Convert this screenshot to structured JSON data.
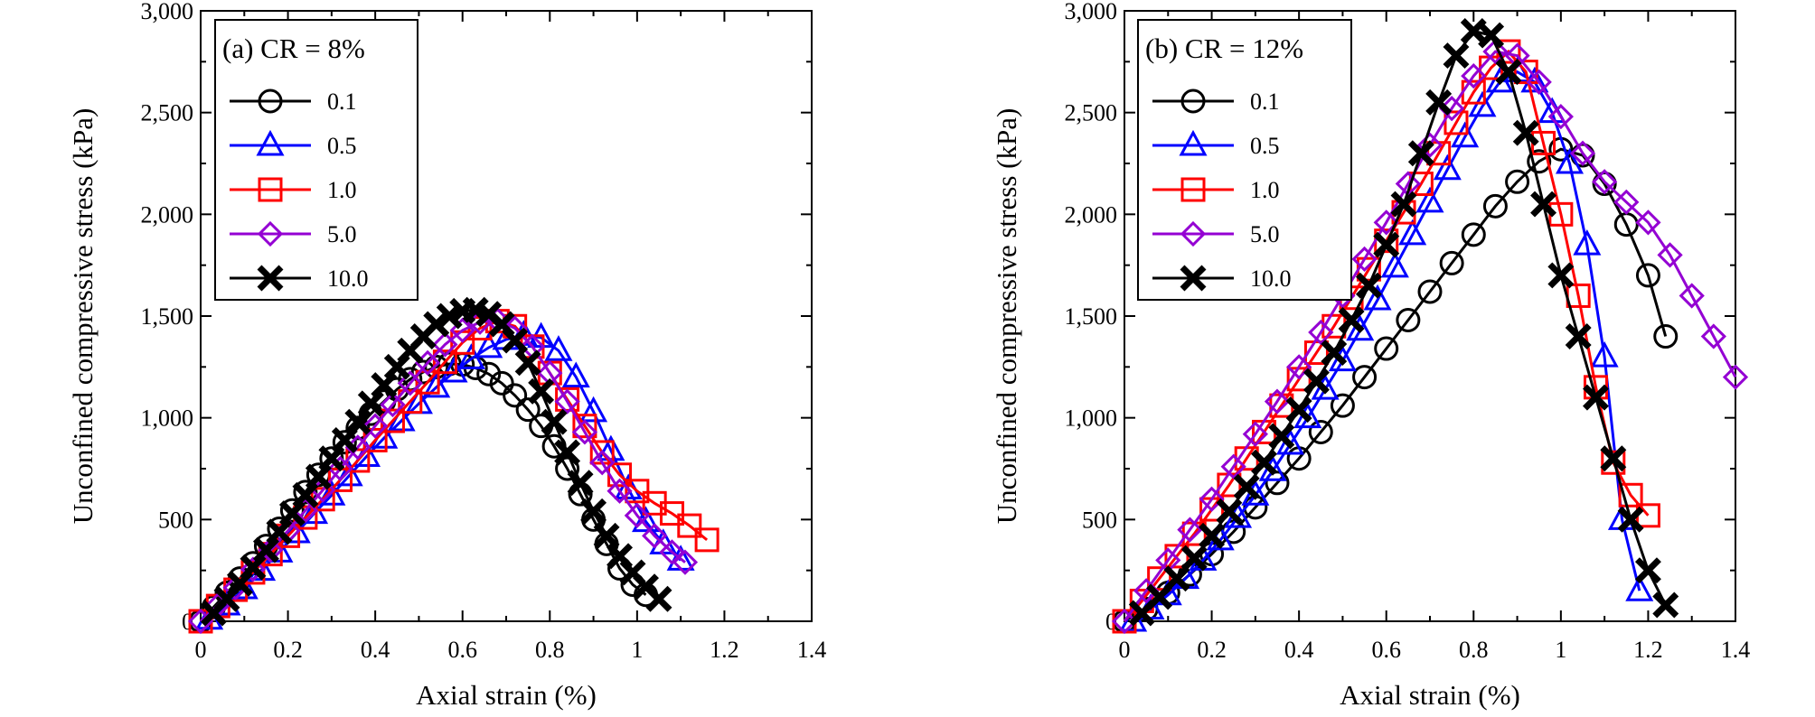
{
  "chart_data": [
    {
      "type": "line",
      "title": "(a) CR = 8%",
      "xlabel": "Axial strain (%)",
      "ylabel": "Unconfined compressive stress (kPa)",
      "xlim": [
        0,
        1.4
      ],
      "ylim": [
        0,
        3000
      ],
      "x_ticks": [
        0,
        0.2,
        0.4,
        0.6,
        0.8,
        1,
        1.2,
        1.4
      ],
      "x_tick_labels": [
        "0",
        "0.2",
        "0.4",
        "0.6",
        "0.8",
        "1",
        "1.2",
        "1.4"
      ],
      "y_ticks": [
        0,
        500,
        1000,
        1500,
        2000,
        2500,
        3000
      ],
      "y_tick_labels": [
        "0",
        "500",
        "1,000",
        "1,500",
        "2,000",
        "2,500",
        "3,000"
      ],
      "legend_position": "top-left",
      "grid": false,
      "series": [
        {
          "name": "0.1",
          "color": "#000000",
          "marker": "circle",
          "x": [
            0.0,
            0.03,
            0.06,
            0.09,
            0.12,
            0.15,
            0.18,
            0.21,
            0.24,
            0.27,
            0.3,
            0.33,
            0.36,
            0.39,
            0.42,
            0.45,
            0.48,
            0.51,
            0.54,
            0.57,
            0.6,
            0.63,
            0.66,
            0.69,
            0.72,
            0.75,
            0.78,
            0.81,
            0.84,
            0.87,
            0.9,
            0.93,
            0.96,
            0.99,
            1.02
          ],
          "y": [
            0,
            70,
            140,
            210,
            285,
            370,
            455,
            545,
            635,
            720,
            800,
            880,
            950,
            1020,
            1080,
            1140,
            1190,
            1225,
            1250,
            1265,
            1262,
            1245,
            1215,
            1170,
            1110,
            1040,
            960,
            860,
            750,
            625,
            500,
            380,
            260,
            180,
            130
          ]
        },
        {
          "name": "0.5",
          "color": "#0000ff",
          "marker": "triangle",
          "x": [
            0.02,
            0.06,
            0.1,
            0.14,
            0.18,
            0.22,
            0.26,
            0.3,
            0.34,
            0.38,
            0.42,
            0.46,
            0.5,
            0.54,
            0.58,
            0.62,
            0.66,
            0.7,
            0.74,
            0.78,
            0.82,
            0.86,
            0.9,
            0.94,
            0.98,
            1.02,
            1.06,
            1.1
          ],
          "y": [
            10,
            80,
            160,
            250,
            340,
            435,
            530,
            620,
            715,
            810,
            900,
            985,
            1070,
            1150,
            1225,
            1290,
            1345,
            1385,
            1405,
            1395,
            1330,
            1200,
            1030,
            840,
            650,
            490,
            380,
            300
          ]
        },
        {
          "name": "1.0",
          "color": "#ff0000",
          "marker": "square",
          "x": [
            0.0,
            0.04,
            0.08,
            0.12,
            0.16,
            0.2,
            0.24,
            0.28,
            0.32,
            0.36,
            0.4,
            0.44,
            0.48,
            0.52,
            0.56,
            0.6,
            0.64,
            0.68,
            0.72,
            0.76,
            0.8,
            0.84,
            0.88,
            0.92,
            0.96,
            1.0,
            1.04,
            1.08,
            1.12,
            1.16
          ],
          "y": [
            0,
            75,
            155,
            240,
            330,
            420,
            510,
            600,
            695,
            790,
            890,
            985,
            1080,
            1175,
            1275,
            1370,
            1440,
            1475,
            1450,
            1350,
            1220,
            1090,
            960,
            830,
            720,
            640,
            580,
            530,
            470,
            400
          ]
        },
        {
          "name": "5.0",
          "color": "#9400d3",
          "marker": "diamond",
          "x": [
            0.0,
            0.04,
            0.08,
            0.12,
            0.16,
            0.2,
            0.24,
            0.28,
            0.32,
            0.36,
            0.4,
            0.44,
            0.48,
            0.52,
            0.56,
            0.6,
            0.64,
            0.68,
            0.72,
            0.76,
            0.8,
            0.84,
            0.88,
            0.92,
            0.96,
            1.0,
            1.04,
            1.08,
            1.11
          ],
          "y": [
            0,
            80,
            165,
            255,
            350,
            445,
            545,
            645,
            750,
            855,
            960,
            1065,
            1170,
            1270,
            1360,
            1430,
            1470,
            1480,
            1440,
            1350,
            1220,
            1080,
            930,
            780,
            640,
            520,
            420,
            340,
            290
          ]
        },
        {
          "name": "10.0",
          "color": "#000000",
          "marker": "x",
          "x": [
            0.03,
            0.06,
            0.09,
            0.12,
            0.15,
            0.18,
            0.21,
            0.24,
            0.27,
            0.3,
            0.33,
            0.36,
            0.39,
            0.42,
            0.45,
            0.48,
            0.51,
            0.54,
            0.57,
            0.6,
            0.63,
            0.66,
            0.69,
            0.72,
            0.75,
            0.78,
            0.81,
            0.84,
            0.87,
            0.9,
            0.93,
            0.96,
            0.99,
            1.02,
            1.05
          ],
          "y": [
            40,
            110,
            185,
            265,
            350,
            440,
            530,
            620,
            710,
            800,
            890,
            980,
            1070,
            1160,
            1250,
            1330,
            1400,
            1460,
            1500,
            1525,
            1530,
            1510,
            1460,
            1380,
            1270,
            1130,
            980,
            830,
            680,
            540,
            420,
            320,
            240,
            170,
            110
          ]
        }
      ]
    },
    {
      "type": "line",
      "title": "(b) CR = 12%",
      "xlabel": "Axial strain (%)",
      "ylabel": "Unconfined compressive stress (kPa)",
      "xlim": [
        0,
        1.4
      ],
      "ylim": [
        0,
        3000
      ],
      "x_ticks": [
        0,
        0.2,
        0.4,
        0.6,
        0.8,
        1,
        1.2,
        1.4
      ],
      "x_tick_labels": [
        "0",
        "0.2",
        "0.4",
        "0.6",
        "0.8",
        "1",
        "1.2",
        "1.4"
      ],
      "y_ticks": [
        0,
        500,
        1000,
        1500,
        2000,
        2500,
        3000
      ],
      "y_tick_labels": [
        "0",
        "500",
        "1,000",
        "1,500",
        "2,000",
        "2,500",
        "3,000"
      ],
      "legend_position": "top-left",
      "grid": false,
      "series": [
        {
          "name": "0.1",
          "color": "#000000",
          "marker": "circle",
          "x": [
            0.0,
            0.05,
            0.1,
            0.15,
            0.2,
            0.25,
            0.3,
            0.35,
            0.4,
            0.45,
            0.5,
            0.55,
            0.6,
            0.65,
            0.7,
            0.75,
            0.8,
            0.85,
            0.9,
            0.95,
            1.0,
            1.05,
            1.1,
            1.15,
            1.2,
            1.24
          ],
          "y": [
            0,
            60,
            140,
            230,
            330,
            440,
            560,
            680,
            800,
            930,
            1060,
            1200,
            1340,
            1480,
            1620,
            1760,
            1900,
            2040,
            2160,
            2260,
            2320,
            2290,
            2150,
            1950,
            1700,
            1400
          ]
        },
        {
          "name": "0.5",
          "color": "#0000ff",
          "marker": "triangle",
          "x": [
            0.02,
            0.06,
            0.1,
            0.14,
            0.18,
            0.22,
            0.26,
            0.3,
            0.34,
            0.38,
            0.42,
            0.46,
            0.5,
            0.54,
            0.58,
            0.62,
            0.66,
            0.7,
            0.74,
            0.78,
            0.82,
            0.86,
            0.9,
            0.94,
            0.98,
            1.02,
            1.06,
            1.1,
            1.14,
            1.18
          ],
          "y": [
            0,
            60,
            130,
            210,
            300,
            400,
            510,
            620,
            740,
            870,
            1000,
            1140,
            1280,
            1430,
            1580,
            1740,
            1900,
            2060,
            2220,
            2380,
            2530,
            2650,
            2700,
            2650,
            2500,
            2250,
            1850,
            1300,
            500,
            150
          ]
        },
        {
          "name": "1.0",
          "color": "#ff0000",
          "marker": "square",
          "x": [
            0.0,
            0.04,
            0.08,
            0.12,
            0.16,
            0.2,
            0.24,
            0.28,
            0.32,
            0.36,
            0.4,
            0.44,
            0.48,
            0.52,
            0.56,
            0.6,
            0.64,
            0.68,
            0.72,
            0.76,
            0.8,
            0.84,
            0.88,
            0.92,
            0.96,
            1.0,
            1.04,
            1.08,
            1.12,
            1.16,
            1.2
          ],
          "y": [
            0,
            100,
            210,
            320,
            430,
            550,
            670,
            800,
            930,
            1060,
            1190,
            1320,
            1450,
            1590,
            1730,
            1870,
            2010,
            2150,
            2300,
            2450,
            2600,
            2720,
            2800,
            2700,
            2350,
            2000,
            1600,
            1150,
            780,
            620,
            520
          ]
        },
        {
          "name": "5.0",
          "color": "#9400d3",
          "marker": "diamond",
          "x": [
            0.0,
            0.05,
            0.1,
            0.15,
            0.2,
            0.25,
            0.3,
            0.35,
            0.4,
            0.45,
            0.5,
            0.55,
            0.6,
            0.65,
            0.7,
            0.75,
            0.8,
            0.85,
            0.9,
            0.95,
            1.0,
            1.05,
            1.1,
            1.15,
            1.2,
            1.25,
            1.3,
            1.35,
            1.4
          ],
          "y": [
            0,
            150,
            300,
            450,
            600,
            760,
            920,
            1080,
            1250,
            1420,
            1600,
            1780,
            1960,
            2150,
            2340,
            2520,
            2680,
            2800,
            2780,
            2650,
            2480,
            2300,
            2160,
            2060,
            1960,
            1800,
            1600,
            1400,
            1200
          ]
        },
        {
          "name": "10.0",
          "color": "#000000",
          "marker": "x",
          "x": [
            0.04,
            0.08,
            0.12,
            0.16,
            0.2,
            0.24,
            0.28,
            0.32,
            0.36,
            0.4,
            0.44,
            0.48,
            0.52,
            0.56,
            0.6,
            0.64,
            0.68,
            0.72,
            0.76,
            0.8,
            0.84,
            0.88,
            0.92,
            0.96,
            1.0,
            1.04,
            1.08,
            1.12,
            1.16,
            1.2,
            1.24
          ],
          "y": [
            40,
            120,
            210,
            310,
            420,
            540,
            660,
            780,
            910,
            1040,
            1180,
            1320,
            1480,
            1650,
            1850,
            2050,
            2300,
            2550,
            2780,
            2900,
            2880,
            2700,
            2400,
            2050,
            1700,
            1400,
            1100,
            800,
            500,
            250,
            80
          ]
        }
      ]
    }
  ]
}
